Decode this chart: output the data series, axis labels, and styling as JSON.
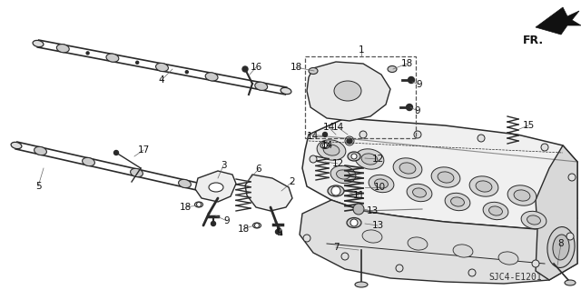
{
  "background_color": "#ffffff",
  "diagram_code": "SJC4-E1201",
  "fr_label": "FR.",
  "line_color": "#2a2a2a",
  "label_color": "#111111",
  "label_fontsize": 7.5,
  "figsize": [
    6.4,
    3.19
  ],
  "dpi": 100
}
